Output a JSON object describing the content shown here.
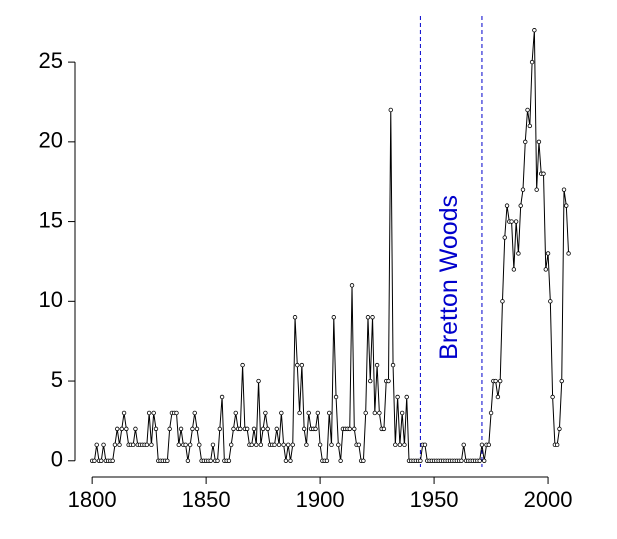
{
  "chart_data": {
    "type": "line",
    "x": [
      1800,
      1801,
      1802,
      1803,
      1804,
      1805,
      1806,
      1807,
      1808,
      1809,
      1810,
      1811,
      1812,
      1813,
      1814,
      1815,
      1816,
      1817,
      1818,
      1819,
      1820,
      1821,
      1822,
      1823,
      1824,
      1825,
      1826,
      1827,
      1828,
      1829,
      1830,
      1831,
      1832,
      1833,
      1834,
      1835,
      1836,
      1837,
      1838,
      1839,
      1840,
      1841,
      1842,
      1843,
      1844,
      1845,
      1846,
      1847,
      1848,
      1849,
      1850,
      1851,
      1852,
      1853,
      1854,
      1855,
      1856,
      1857,
      1858,
      1859,
      1860,
      1861,
      1862,
      1863,
      1864,
      1865,
      1866,
      1867,
      1868,
      1869,
      1870,
      1871,
      1872,
      1873,
      1874,
      1875,
      1876,
      1877,
      1878,
      1879,
      1880,
      1881,
      1882,
      1883,
      1884,
      1885,
      1886,
      1887,
      1888,
      1889,
      1890,
      1891,
      1892,
      1893,
      1894,
      1895,
      1896,
      1897,
      1898,
      1899,
      1900,
      1901,
      1902,
      1903,
      1904,
      1905,
      1906,
      1907,
      1908,
      1909,
      1910,
      1911,
      1912,
      1913,
      1914,
      1915,
      1916,
      1917,
      1918,
      1919,
      1920,
      1921,
      1922,
      1923,
      1924,
      1925,
      1926,
      1927,
      1928,
      1929,
      1930,
      1931,
      1932,
      1933,
      1934,
      1935,
      1936,
      1937,
      1938,
      1939,
      1940,
      1941,
      1942,
      1943,
      1944,
      1945,
      1946,
      1947,
      1948,
      1949,
      1950,
      1951,
      1952,
      1953,
      1954,
      1955,
      1956,
      1957,
      1958,
      1959,
      1960,
      1961,
      1962,
      1963,
      1964,
      1965,
      1966,
      1967,
      1968,
      1969,
      1970,
      1971,
      1972,
      1973,
      1974,
      1975,
      1976,
      1977,
      1978,
      1979,
      1980,
      1981,
      1982,
      1983,
      1984,
      1985,
      1986,
      1987,
      1988,
      1989,
      1990,
      1991,
      1992,
      1993,
      1994,
      1995,
      1996,
      1997,
      1998,
      1999,
      2000,
      2001,
      2002,
      2003,
      2004,
      2005,
      2006,
      2007,
      2008,
      2009
    ],
    "values": [
      0,
      0,
      1,
      0,
      0,
      1,
      0,
      0,
      0,
      0,
      1,
      2,
      1,
      2,
      3,
      2,
      1,
      1,
      1,
      2,
      1,
      1,
      1,
      1,
      1,
      3,
      1,
      3,
      2,
      0,
      0,
      0,
      0,
      0,
      2,
      3,
      3,
      3,
      1,
      2,
      1,
      1,
      0,
      1,
      2,
      3,
      2,
      1,
      0,
      0,
      0,
      0,
      0,
      1,
      0,
      0,
      2,
      4,
      0,
      0,
      0,
      1,
      2,
      3,
      2,
      2,
      6,
      2,
      2,
      1,
      1,
      2,
      1,
      5,
      1,
      2,
      3,
      2,
      1,
      1,
      1,
      2,
      1,
      3,
      1,
      0,
      1,
      0,
      1,
      9,
      6,
      3,
      6,
      2,
      1,
      3,
      2,
      2,
      2,
      3,
      1,
      0,
      0,
      0,
      3,
      1,
      9,
      4,
      1,
      0,
      2,
      2,
      2,
      2,
      11,
      2,
      1,
      1,
      0,
      0,
      3,
      9,
      5,
      9,
      3,
      6,
      3,
      2,
      2,
      5,
      5,
      22,
      6,
      1,
      4,
      1,
      3,
      1,
      4,
      0,
      0,
      0,
      0,
      0,
      0,
      1,
      1,
      0,
      0,
      0,
      0,
      0,
      0,
      0,
      0,
      0,
      0,
      0,
      0,
      0,
      0,
      0,
      0,
      1,
      0,
      0,
      0,
      0,
      0,
      0,
      0,
      1,
      0,
      1,
      1,
      3,
      5,
      5,
      4,
      5,
      10,
      14,
      16,
      15,
      15,
      12,
      15,
      13,
      16,
      17,
      20,
      22,
      21,
      25,
      27,
      17,
      20,
      18,
      18,
      12,
      13,
      10,
      4,
      1,
      1,
      2,
      5,
      17,
      16,
      13
    ],
    "color": "#000000",
    "xlim": [
      1791.6,
      2018.4
    ],
    "ylim": [
      -1.08,
      28.08
    ],
    "xticks": [
      1800,
      1850,
      1900,
      1950,
      2000
    ],
    "yticks": [
      0,
      5,
      10,
      15,
      20,
      25
    ],
    "vlines": [
      1944,
      1971
    ],
    "vline_color": "#0000cc",
    "annotation": "Bretton Woods"
  }
}
